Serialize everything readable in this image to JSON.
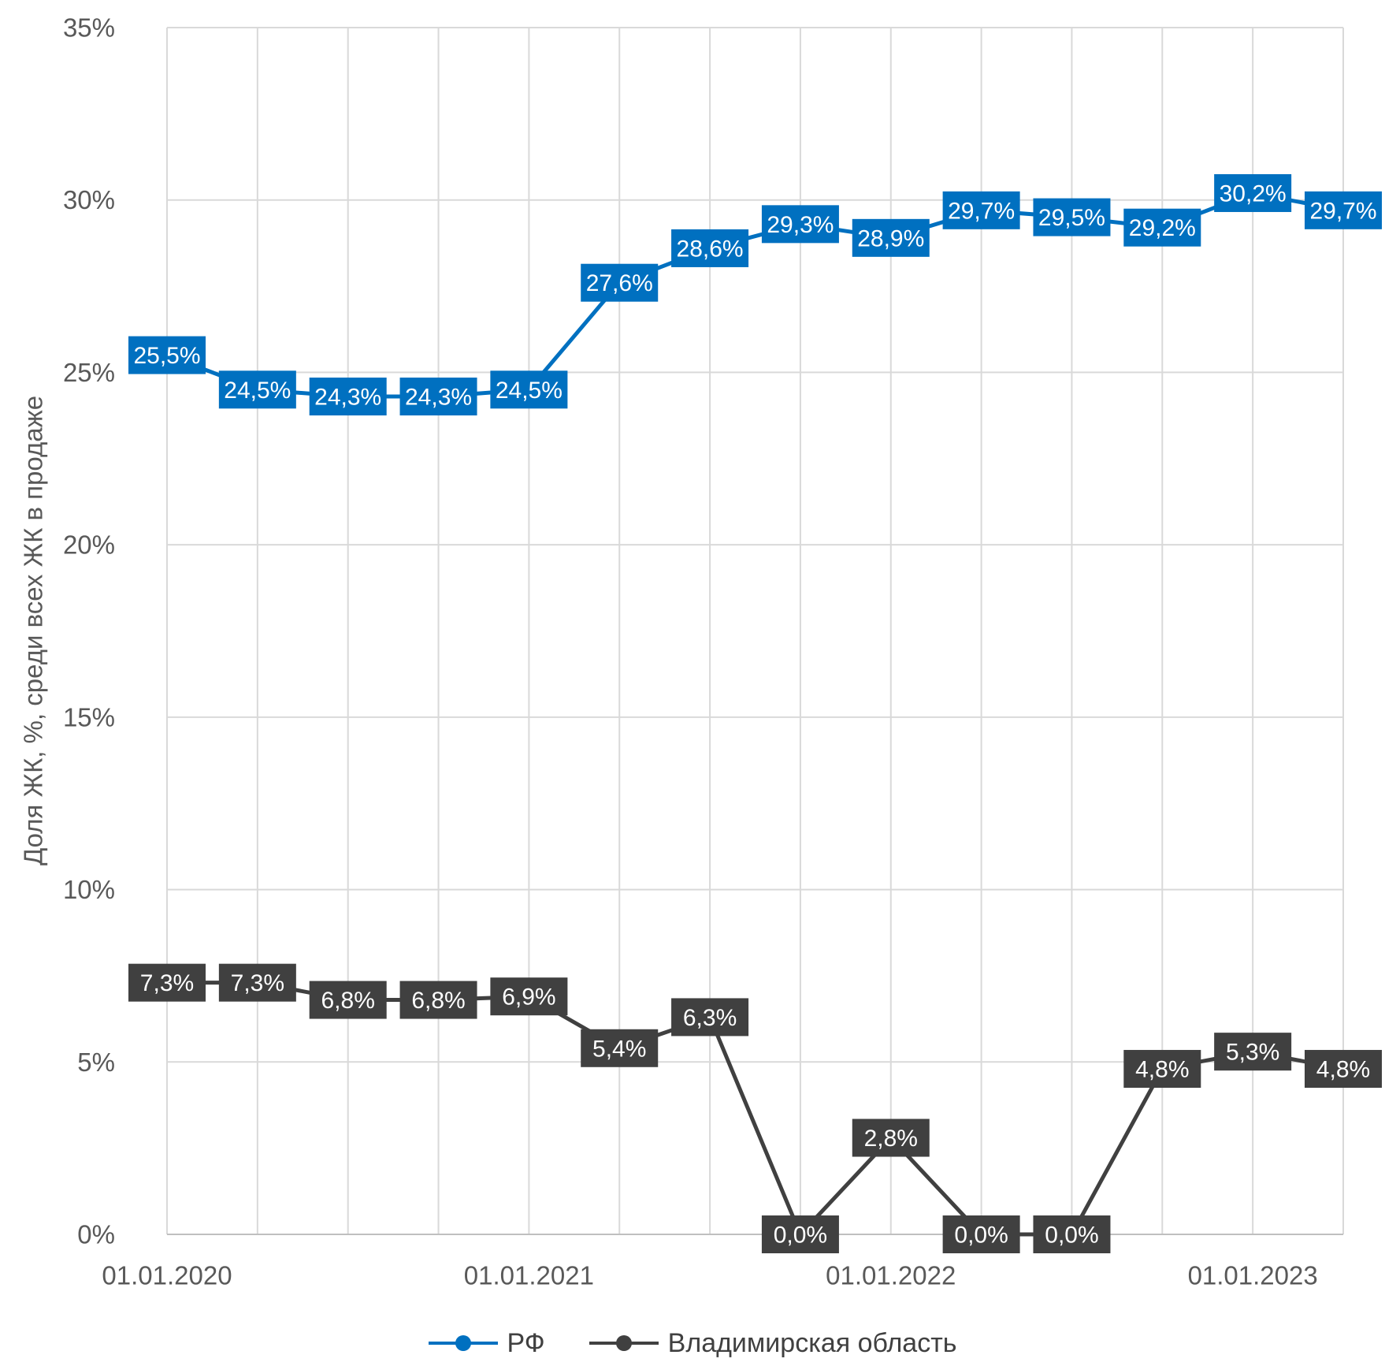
{
  "chart_data": {
    "type": "line",
    "title": "",
    "xlabel": "",
    "ylabel": "Доля ЖК, %, среди всех ЖК в продаже",
    "ylim": [
      0,
      35
    ],
    "yticks": [
      0,
      5,
      10,
      15,
      20,
      25,
      30,
      35
    ],
    "ytick_labels": [
      "0%",
      "5%",
      "10%",
      "15%",
      "20%",
      "25%",
      "30%",
      "35%"
    ],
    "x": [
      "01.01.2020",
      "01.04.2020",
      "01.07.2020",
      "01.10.2020",
      "01.01.2021",
      "01.04.2021",
      "01.07.2021",
      "01.10.2021",
      "01.01.2022",
      "01.04.2022",
      "01.07.2022",
      "01.10.2022",
      "01.01.2023",
      "01.04.2023"
    ],
    "x_tick_labels": [
      "01.01.2020",
      "01.01.2021",
      "01.01.2022",
      "01.01.2023"
    ],
    "grid": true,
    "legend_position": "bottom-center",
    "series": [
      {
        "name": "РФ",
        "color": "#0070C0",
        "values": [
          25.5,
          24.5,
          24.3,
          24.3,
          24.5,
          27.6,
          28.6,
          29.3,
          28.9,
          29.7,
          29.5,
          29.2,
          30.2,
          29.7
        ],
        "labels": [
          "25,5%",
          "24,5%",
          "24,3%",
          "24,3%",
          "24,5%",
          "27,6%",
          "28,6%",
          "29,3%",
          "28,9%",
          "29,7%",
          "29,5%",
          "29,2%",
          "30,2%",
          "29,7%"
        ]
      },
      {
        "name": "Владимирская область",
        "color": "#404040",
        "values": [
          7.3,
          7.3,
          6.8,
          6.8,
          6.9,
          5.4,
          6.3,
          0.0,
          2.8,
          0.0,
          0.0,
          4.8,
          5.3,
          4.8
        ],
        "labels": [
          "7,3%",
          "7,3%",
          "6,8%",
          "6,8%",
          "6,9%",
          "5,4%",
          "6,3%",
          "0,0%",
          "2,8%",
          "0,0%",
          "0,0%",
          "4,8%",
          "5,3%",
          "4,8%"
        ]
      }
    ]
  }
}
